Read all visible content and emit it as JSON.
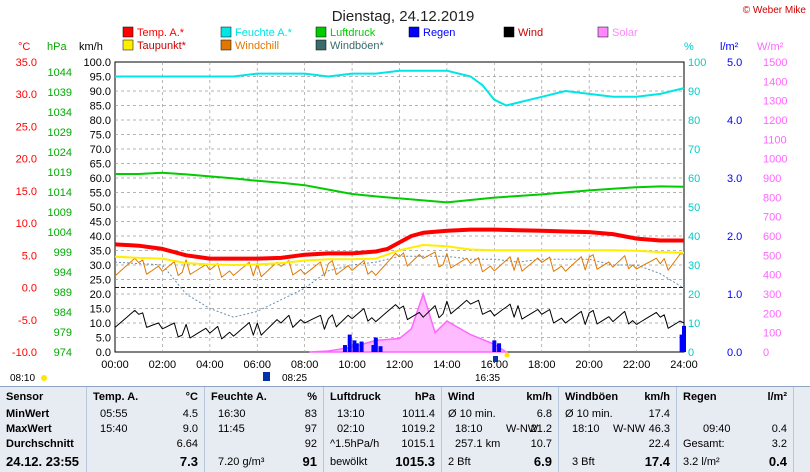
{
  "title": "Dienstag, 24.12.2019",
  "copyright": "© Weber Mike",
  "legend": [
    {
      "label": "Temp. A.*",
      "color": "#ff0000"
    },
    {
      "label": "Feuchte A.*",
      "color": "#00e5e5"
    },
    {
      "label": "Luftdruck",
      "color": "#00cc00"
    },
    {
      "label": "Regen",
      "color": "#0000ff"
    },
    {
      "label": "Wind",
      "color": "#000000"
    },
    {
      "label": "Solar",
      "color": "#ff88ff"
    },
    {
      "label": "Taupunkt*",
      "color": "#ffee00"
    },
    {
      "label": "Windchill",
      "color": "#e07800"
    },
    {
      "label": "Windböen*",
      "color": "#3a6a6a"
    }
  ],
  "axes": {
    "temp_unit": "°C",
    "hpa_unit": "hPa",
    "kmh_unit": "km/h",
    "pct_unit": "%",
    "rain_unit": "l/m²",
    "solar_unit": "W/m²",
    "temp_ticks": [
      "35.0",
      "30.0",
      "25.0",
      "20.0",
      "15.0",
      "10.0",
      "5.0",
      "0.0",
      "-5.0",
      "-10.0"
    ],
    "hpa_ticks": [
      "1044",
      "1039",
      "1034",
      "1029",
      "1024",
      "1019",
      "1014",
      "1009",
      "1004",
      "999",
      "994",
      "989",
      "984",
      "979",
      "974"
    ],
    "kmh_ticks": [
      "100.0",
      "95.0",
      "90.0",
      "85.0",
      "80.0",
      "75.0",
      "70.0",
      "65.0",
      "60.0",
      "55.0",
      "50.0",
      "45.0",
      "40.0",
      "35.0",
      "30.0",
      "25.0",
      "20.0",
      "15.0",
      "10.0",
      "5.0",
      "0.0"
    ],
    "pct_ticks": [
      "100",
      "90",
      "80",
      "70",
      "60",
      "50",
      "40",
      "30",
      "20",
      "10",
      "0"
    ],
    "rain_ticks": [
      "5.0",
      "4.0",
      "3.0",
      "2.0",
      "1.0",
      "0.0"
    ],
    "solar_ticks": [
      "1500",
      "1400",
      "1300",
      "1200",
      "1100",
      "1000",
      "900",
      "800",
      "700",
      "600",
      "500",
      "400",
      "300",
      "200",
      "100",
      "0"
    ],
    "x_ticks": [
      "00:00",
      "02:00",
      "04:00",
      "06:00",
      "08:00",
      "10:00",
      "12:00",
      "14:00",
      "16:00",
      "18:00",
      "20:00",
      "22:00",
      "24:00"
    ]
  },
  "events": {
    "sunrise": "08:10",
    "t1": "08:25",
    "t2": "16:35"
  },
  "chart_data": {
    "type": "line",
    "x_unit": "hour",
    "xlim": [
      0,
      24
    ],
    "ylim_kmh": [
      0,
      100
    ],
    "series": [
      {
        "name": "Temp. A.*",
        "unit": "°C",
        "x": [
          0,
          1,
          2,
          3,
          4,
          5,
          6,
          7,
          8,
          9,
          10,
          11,
          11.5,
          12,
          12.5,
          13,
          14,
          15,
          16,
          17,
          18,
          19,
          20,
          21,
          22,
          23,
          24
        ],
        "values": [
          6.7,
          6.5,
          6.0,
          5.0,
          4.5,
          4.5,
          4.5,
          4.6,
          5.1,
          5.3,
          5.3,
          5.6,
          6.0,
          7.0,
          8.0,
          8.5,
          8.8,
          9.0,
          9.0,
          8.9,
          8.8,
          8.7,
          8.6,
          8.3,
          7.6,
          7.3,
          7.3
        ]
      },
      {
        "name": "Taupunkt*",
        "unit": "°C",
        "x": [
          0,
          1,
          2,
          3,
          4,
          5,
          6,
          7,
          8,
          9,
          10,
          11,
          12,
          13,
          14,
          15,
          16,
          17,
          18,
          19,
          20,
          21,
          22,
          23,
          24
        ],
        "values": [
          4.8,
          4.6,
          4.5,
          3.8,
          3.6,
          3.5,
          3.6,
          3.8,
          4.2,
          4.4,
          4.4,
          4.5,
          5.8,
          6.6,
          6.4,
          5.9,
          5.8,
          5.8,
          5.8,
          5.8,
          5.8,
          5.8,
          5.7,
          5.5,
          5.4
        ]
      },
      {
        "name": "Feuchte A.*",
        "unit": "%",
        "x": [
          0,
          1,
          2,
          3,
          4,
          5,
          6,
          7,
          8,
          9,
          10,
          11,
          12,
          13,
          14,
          15,
          15.5,
          16,
          16.5,
          17,
          18,
          19,
          20,
          21,
          22,
          23,
          24
        ],
        "values": [
          95,
          95,
          95,
          95,
          95,
          95,
          96,
          96,
          96,
          95,
          96,
          96,
          97,
          97,
          97,
          95,
          92,
          87,
          85,
          86,
          88,
          90,
          89,
          88,
          88,
          89,
          91
        ]
      },
      {
        "name": "Luftdruck",
        "unit": "hPa",
        "x": [
          0,
          1,
          2,
          3,
          4,
          5,
          6,
          7,
          8,
          9,
          10,
          11,
          12,
          13,
          14,
          15,
          16,
          17,
          18,
          19,
          20,
          21,
          22,
          23,
          24
        ],
        "values": [
          1018.5,
          1018.5,
          1018.8,
          1018.4,
          1017.9,
          1017.4,
          1016.8,
          1016.3,
          1015.7,
          1014.6,
          1013.5,
          1012.9,
          1012.4,
          1011.9,
          1011.4,
          1012.0,
          1012.6,
          1013.0,
          1013.4,
          1013.9,
          1014.4,
          1014.8,
          1015.2,
          1015.4,
          1015.3
        ]
      },
      {
        "name": "Wind",
        "unit": "km/h",
        "x": [
          0,
          1,
          2,
          3,
          4,
          5,
          6,
          7,
          8,
          9,
          10,
          11,
          12,
          13,
          14,
          15,
          16,
          17,
          18,
          19,
          20,
          21,
          22,
          23,
          24
        ],
        "values": [
          11,
          12,
          9,
          7,
          6,
          7,
          8,
          10,
          12,
          10,
          12,
          13,
          14,
          13,
          15,
          16,
          14,
          14,
          13,
          12,
          12,
          11,
          12,
          11,
          10
        ]
      },
      {
        "name": "Windchill",
        "unit": "°C",
        "x": [
          0,
          1,
          2,
          3,
          4,
          5,
          6,
          7,
          8,
          9,
          10,
          11,
          12,
          13,
          14,
          15,
          16,
          17,
          18,
          19,
          20,
          21,
          22,
          23,
          24
        ],
        "values": [
          3.0,
          3.4,
          3.0,
          3.1,
          2.5,
          2.6,
          2.8,
          3.3,
          3.0,
          3.0,
          2.9,
          3.1,
          4.3,
          5.0,
          4.1,
          3.5,
          3.3,
          3.7,
          3.9,
          3.5,
          4.0,
          3.4,
          4.1,
          3.2,
          5.3
        ]
      },
      {
        "name": "Windböen*",
        "unit": "km/h",
        "x": [
          0,
          2,
          3,
          4,
          5,
          6,
          7,
          8,
          9,
          10,
          11,
          12,
          13,
          14,
          15,
          16,
          17,
          18,
          19,
          20,
          21,
          22,
          23,
          24
        ],
        "values": [
          31,
          30,
          20,
          15,
          12,
          14,
          18,
          22,
          28,
          30,
          31,
          33,
          33,
          33,
          32,
          32,
          31,
          32,
          32,
          32,
          30,
          30,
          27,
          22
        ]
      },
      {
        "name": "Solar",
        "unit": "W/m²",
        "x": [
          8.2,
          9,
          10,
          11,
          12,
          12.5,
          13,
          13.5,
          14,
          15,
          16,
          16.5
        ],
        "values": [
          0,
          5,
          25,
          60,
          70,
          120,
          300,
          100,
          160,
          90,
          40,
          0
        ]
      }
    ],
    "rain_bars": {
      "unit": "l/m²",
      "x": [
        9.7,
        9.9,
        10.1,
        10.2,
        10.4,
        10.9,
        11.0,
        11.2,
        16.0,
        16.2,
        23.9,
        24.0
      ],
      "values": [
        0.12,
        0.3,
        0.2,
        0.15,
        0.18,
        0.12,
        0.25,
        0.1,
        0.2,
        0.15,
        0.3,
        0.45
      ]
    }
  },
  "stats": {
    "sensor": {
      "header": "Sensor",
      "rows": [
        "MinWert",
        "MaxWert",
        "Durchschnitt"
      ],
      "footer": "24.12. 23:55"
    },
    "temp": {
      "header": "Temp. A.",
      "unit": "°C",
      "min_time": "05:55",
      "min": "4.5",
      "max_time": "15:40",
      "max": "9.0",
      "avg": "6.64",
      "current": "7.3"
    },
    "hum": {
      "header": "Feuchte A.",
      "unit": "%",
      "min_time": "16:30",
      "min": "83",
      "max_time": "11:45",
      "max": "97",
      "avg": "92",
      "current_extra": "7.20 g/m³",
      "current": "91"
    },
    "press": {
      "header": "Luftdruck",
      "unit": "hPa",
      "min_time": "13:10",
      "min": "1011.4",
      "max_time": "02:10",
      "max": "1019.2",
      "avg_label": "^1.5hPa/h",
      "avg": "1015.1",
      "current_extra": "bewölkt",
      "current": "1015.3"
    },
    "wind": {
      "header": "Wind",
      "unit": "km/h",
      "r1_label": "Ø 10 min.",
      "r1": "6.8",
      "r2_time": "18:10",
      "r2_dir": "W-NW",
      "r2": "21.2",
      "r3_label": "257.1 km",
      "r3": "10.7",
      "footer_label": "2 Bft",
      "current": "6.9"
    },
    "gust": {
      "header": "Windböen",
      "unit": "km/h",
      "r1_label": "Ø 10 min.",
      "r1": "17.4",
      "r2_time": "18:10",
      "r2_dir": "W-NW",
      "r2": "46.3",
      "r3": "22.4",
      "footer_label": "3 Bft",
      "current": "17.4"
    },
    "rain": {
      "header": "Regen",
      "unit": "l/m²",
      "r2_time": "09:40",
      "r2": "0.4",
      "r3_label": "Gesamt:",
      "r3": "3.2",
      "footer_label": "3.2 l/m²",
      "current": "0.4"
    }
  }
}
